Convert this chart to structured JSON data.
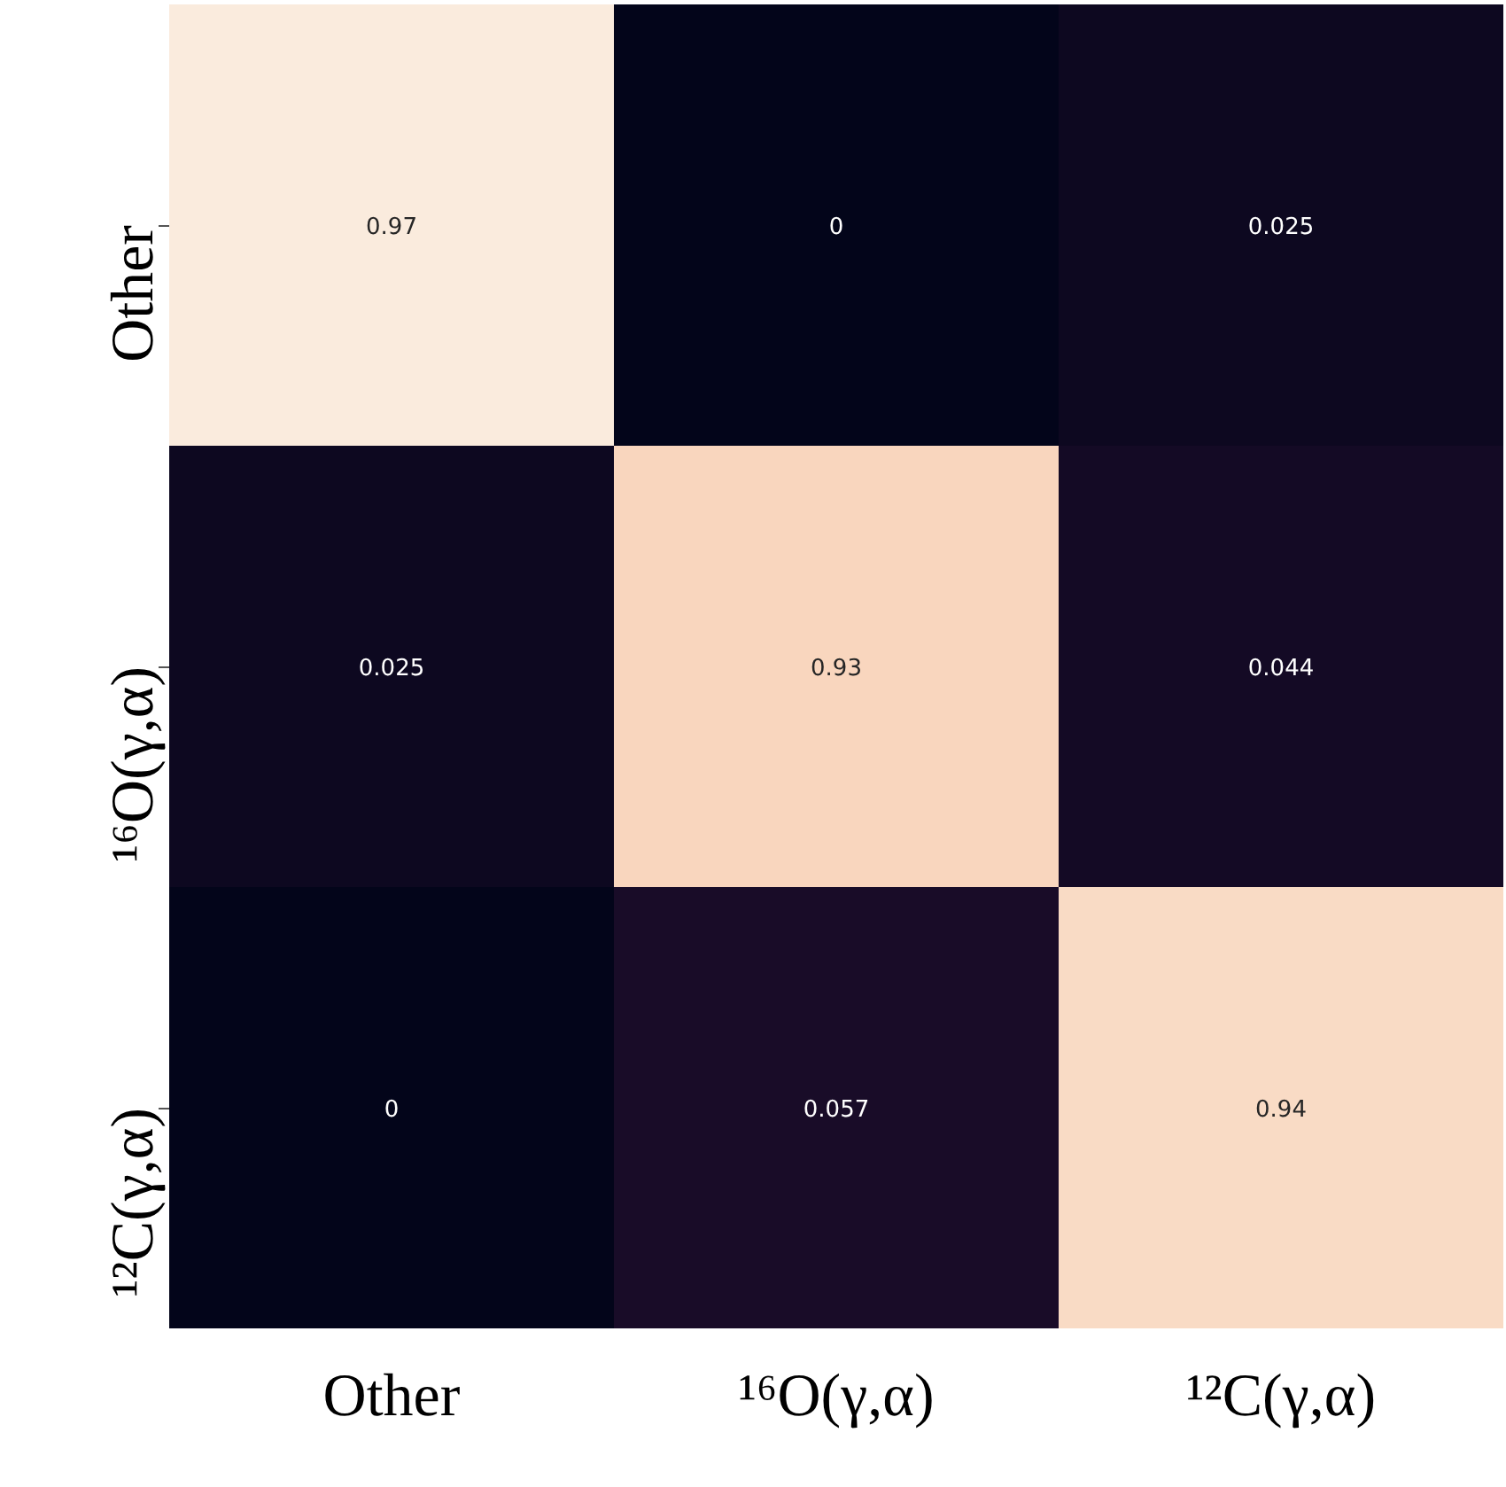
{
  "chart_data": {
    "type": "heatmap",
    "categories": [
      "Other",
      "¹⁶O(γ,α)",
      "¹²C(γ,α)"
    ],
    "y_categories": [
      "Other",
      "¹⁶O(γ,α)",
      "¹²C(γ,α)"
    ],
    "cells": [
      [
        0.97,
        0,
        0.025
      ],
      [
        0.025,
        0.93,
        0.044
      ],
      [
        0,
        0.057,
        0.94
      ]
    ],
    "data_labels": true
  }
}
